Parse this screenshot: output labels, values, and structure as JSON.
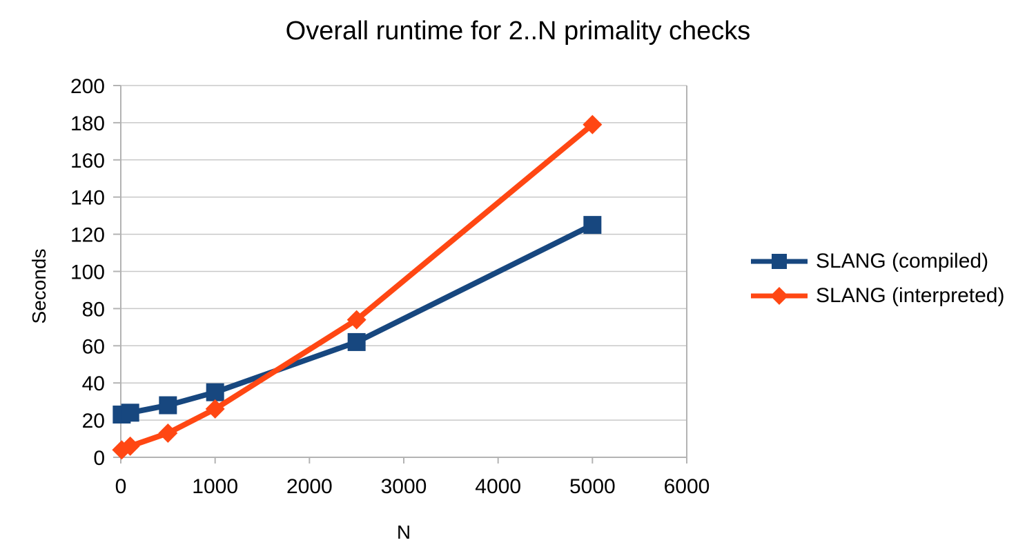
{
  "page": {
    "background": "#ffffff",
    "text_color": "#000000"
  },
  "chart_data": {
    "type": "line",
    "title": "Overall runtime for 2..N primality checks",
    "xlabel": "N",
    "ylabel": "Seconds",
    "xlim": [
      0,
      6000
    ],
    "ylim": [
      0,
      200
    ],
    "x_ticks": [
      0,
      1000,
      2000,
      3000,
      4000,
      5000,
      6000
    ],
    "y_ticks": [
      0,
      20,
      40,
      60,
      80,
      100,
      120,
      140,
      160,
      180,
      200
    ],
    "grid": "horizontal",
    "legend_position": "right",
    "series": [
      {
        "name": "SLANG (compiled)",
        "color": "#17477f",
        "marker": "square",
        "x": [
          10,
          100,
          500,
          1000,
          2500,
          5000
        ],
        "y": [
          23,
          24,
          28,
          35,
          62,
          125
        ]
      },
      {
        "name": "SLANG (interpreted)",
        "color": "#ff4713",
        "marker": "diamond",
        "x": [
          10,
          100,
          500,
          1000,
          2500,
          5000
        ],
        "y": [
          4,
          6,
          13,
          26,
          74,
          179
        ]
      }
    ],
    "colors": {
      "gridline": "#c8c8c8",
      "axis": "#b3b3b3",
      "tick_text": "#000000"
    }
  }
}
